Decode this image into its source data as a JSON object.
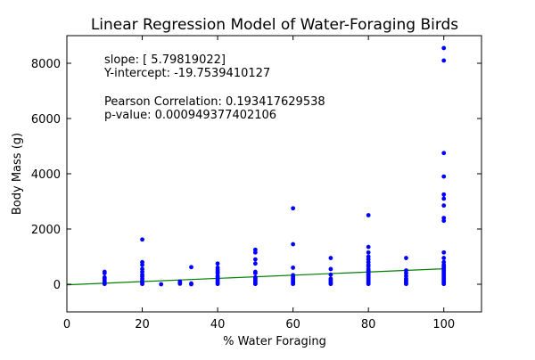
{
  "chart_data": {
    "type": "scatter",
    "title": "Linear Regression Model of Water-Foraging Birds",
    "xlabel": "% Water Foraging",
    "ylabel": "Body Mass (g)",
    "xlim": [
      0,
      110
    ],
    "ylim": [
      -1000,
      9000
    ],
    "xticks": [
      0,
      20,
      40,
      60,
      80,
      100
    ],
    "yticks": [
      0,
      2000,
      4000,
      6000,
      8000
    ],
    "grid": false,
    "annotations": [
      "slope: [ 5.79819022]",
      "Y-intercept: -19.7539410127",
      "Pearson Correlation: 0.193417629538",
      "p-value: 0.000949377402106"
    ],
    "regression": {
      "slope": 5.79819022,
      "intercept": -19.7539410127
    },
    "series": [
      {
        "color": "#0000ff",
        "points": [
          [
            10,
            10
          ],
          [
            10,
            40
          ],
          [
            10,
            80
          ],
          [
            10,
            130
          ],
          [
            10,
            200
          ],
          [
            10,
            250
          ],
          [
            10,
            400
          ],
          [
            10,
            450
          ],
          [
            20,
            10
          ],
          [
            20,
            60
          ],
          [
            20,
            120
          ],
          [
            20,
            200
          ],
          [
            20,
            280
          ],
          [
            20,
            350
          ],
          [
            20,
            450
          ],
          [
            20,
            550
          ],
          [
            20,
            700
          ],
          [
            20,
            800
          ],
          [
            20,
            1620
          ],
          [
            25,
            0
          ],
          [
            30,
            20
          ],
          [
            30,
            60
          ],
          [
            30,
            100
          ],
          [
            33,
            0
          ],
          [
            33,
            30
          ],
          [
            33,
            620
          ],
          [
            40,
            10
          ],
          [
            40,
            50
          ],
          [
            40,
            100
          ],
          [
            40,
            150
          ],
          [
            40,
            200
          ],
          [
            40,
            250
          ],
          [
            40,
            300
          ],
          [
            40,
            400
          ],
          [
            40,
            450
          ],
          [
            40,
            520
          ],
          [
            40,
            600
          ],
          [
            40,
            750
          ],
          [
            50,
            10
          ],
          [
            50,
            50
          ],
          [
            50,
            100
          ],
          [
            50,
            150
          ],
          [
            50,
            200
          ],
          [
            50,
            250
          ],
          [
            50,
            400
          ],
          [
            50,
            450
          ],
          [
            50,
            750
          ],
          [
            50,
            900
          ],
          [
            50,
            1150
          ],
          [
            50,
            1250
          ],
          [
            60,
            10
          ],
          [
            60,
            50
          ],
          [
            60,
            80
          ],
          [
            60,
            120
          ],
          [
            60,
            170
          ],
          [
            60,
            220
          ],
          [
            60,
            280
          ],
          [
            60,
            330
          ],
          [
            60,
            600
          ],
          [
            60,
            1450
          ],
          [
            60,
            2750
          ],
          [
            70,
            10
          ],
          [
            70,
            50
          ],
          [
            70,
            100
          ],
          [
            70,
            150
          ],
          [
            70,
            200
          ],
          [
            70,
            350
          ],
          [
            70,
            550
          ],
          [
            70,
            950
          ],
          [
            80,
            10
          ],
          [
            80,
            40
          ],
          [
            80,
            80
          ],
          [
            80,
            120
          ],
          [
            80,
            160
          ],
          [
            80,
            200
          ],
          [
            80,
            250
          ],
          [
            80,
            300
          ],
          [
            80,
            350
          ],
          [
            80,
            400
          ],
          [
            80,
            450
          ],
          [
            80,
            500
          ],
          [
            80,
            550
          ],
          [
            80,
            650
          ],
          [
            80,
            700
          ],
          [
            80,
            800
          ],
          [
            80,
            900
          ],
          [
            80,
            1000
          ],
          [
            80,
            1150
          ],
          [
            80,
            1350
          ],
          [
            80,
            2500
          ],
          [
            90,
            10
          ],
          [
            90,
            50
          ],
          [
            90,
            100
          ],
          [
            90,
            150
          ],
          [
            90,
            200
          ],
          [
            90,
            300
          ],
          [
            90,
            400
          ],
          [
            90,
            500
          ],
          [
            90,
            950
          ],
          [
            100,
            10
          ],
          [
            100,
            40
          ],
          [
            100,
            80
          ],
          [
            100,
            120
          ],
          [
            100,
            160
          ],
          [
            100,
            200
          ],
          [
            100,
            250
          ],
          [
            100,
            300
          ],
          [
            100,
            350
          ],
          [
            100,
            400
          ],
          [
            100,
            450
          ],
          [
            100,
            500
          ],
          [
            100,
            550
          ],
          [
            100,
            600
          ],
          [
            100,
            650
          ],
          [
            100,
            700
          ],
          [
            100,
            800
          ],
          [
            100,
            950
          ],
          [
            100,
            1150
          ],
          [
            100,
            2300
          ],
          [
            100,
            2400
          ],
          [
            100,
            2850
          ],
          [
            100,
            3100
          ],
          [
            100,
            3250
          ],
          [
            100,
            3900
          ],
          [
            100,
            4750
          ],
          [
            100,
            8100
          ],
          [
            100,
            8550
          ]
        ]
      }
    ]
  },
  "colors": {
    "points": "#0000ff",
    "regression_line": "#007f00",
    "axes": "#000000"
  }
}
